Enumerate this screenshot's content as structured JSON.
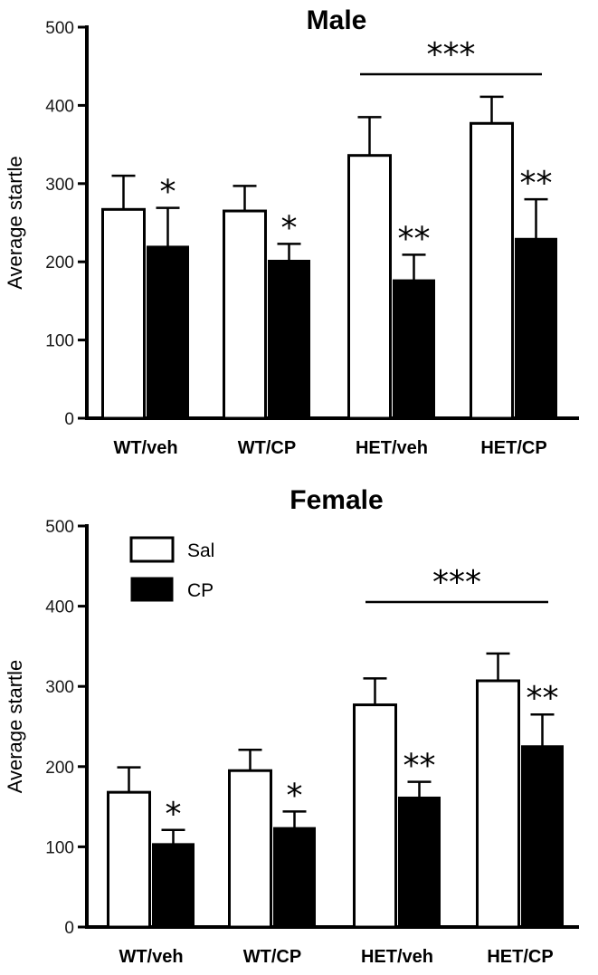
{
  "chart_data": [
    {
      "type": "bar",
      "title": "Male",
      "ylabel": "Average startle",
      "xlabel": "",
      "ylim": [
        0,
        500
      ],
      "yticks": [
        0,
        100,
        200,
        300,
        400,
        500
      ],
      "categories": [
        "WT/veh",
        "WT/CP",
        "HET/veh",
        "HET/CP"
      ],
      "series": [
        {
          "name": "Sal",
          "fill": "#ffffff",
          "values": [
            267,
            265,
            336,
            377
          ],
          "errors": [
            43,
            32,
            49,
            34
          ]
        },
        {
          "name": "CP",
          "fill": "#000000",
          "values": [
            220,
            202,
            177,
            230
          ],
          "errors": [
            49,
            21,
            32,
            50
          ]
        }
      ],
      "annotations": {
        "cp_marks": [
          "*",
          "*",
          "**",
          "**"
        ],
        "group_bracket": {
          "label": "***",
          "from": "HET/veh",
          "to": "HET/CP"
        }
      },
      "show_legend": false
    },
    {
      "type": "bar",
      "title": "Female",
      "ylabel": "Average startle",
      "xlabel": "",
      "ylim": [
        0,
        500
      ],
      "yticks": [
        0,
        100,
        200,
        300,
        400,
        500
      ],
      "categories": [
        "WT/veh",
        "WT/CP",
        "HET/veh",
        "HET/CP"
      ],
      "series": [
        {
          "name": "Sal",
          "fill": "#ffffff",
          "values": [
            168,
            195,
            277,
            307
          ],
          "errors": [
            31,
            26,
            33,
            34
          ]
        },
        {
          "name": "CP",
          "fill": "#000000",
          "values": [
            104,
            124,
            162,
            226
          ],
          "errors": [
            17,
            20,
            19,
            39
          ]
        }
      ],
      "annotations": {
        "cp_marks": [
          "*",
          "*",
          "**",
          "**"
        ],
        "group_bracket": {
          "label": "***",
          "from": "HET/veh",
          "to": "HET/CP"
        }
      },
      "show_legend": true,
      "legend_position": "top-left"
    }
  ]
}
